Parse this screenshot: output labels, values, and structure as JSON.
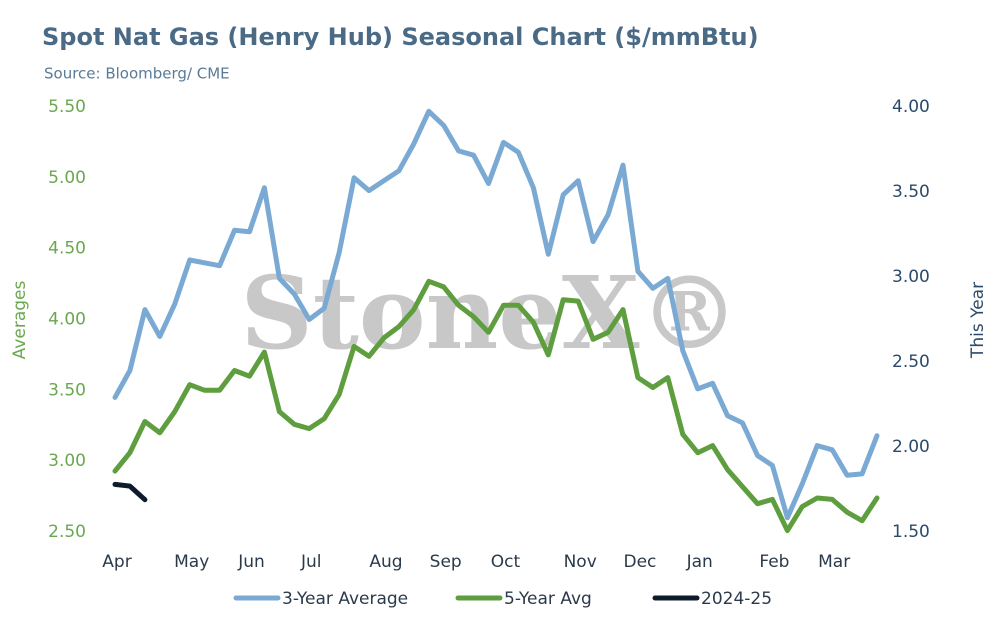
{
  "chart_data": {
    "type": "line",
    "title": "Spot Nat Gas (Henry Hub) Seasonal Chart ($/mmBtu)",
    "subtitle": "Source: Bloomberg/ CME",
    "watermark": "StoneX®",
    "ylabel": "Averages",
    "y2label": "This Year",
    "categories": [
      "Apr",
      null,
      null,
      null,
      null,
      "May",
      null,
      null,
      null,
      "Jun",
      null,
      null,
      null,
      "Jul",
      null,
      null,
      null,
      null,
      "Aug",
      null,
      null,
      null,
      "Sep",
      null,
      null,
      null,
      "Oct",
      null,
      null,
      null,
      null,
      "Nov",
      null,
      null,
      null,
      "Dec",
      null,
      null,
      null,
      "Jan",
      null,
      null,
      null,
      null,
      "Feb",
      null,
      null,
      null,
      "Mar",
      null,
      null,
      null
    ],
    "ylim": [
      2.5,
      5.5
    ],
    "yticks": [
      {
        "value": 2.5,
        "label": "2.50"
      },
      {
        "value": 3,
        "label": "3.00"
      },
      {
        "value": 3.5,
        "label": "3.50"
      },
      {
        "value": 4,
        "label": "4.00"
      },
      {
        "value": 4.5,
        "label": "4.50"
      },
      {
        "value": 5,
        "label": "5.00"
      },
      {
        "value": 5.5,
        "label": "5.50"
      }
    ],
    "y2lim": [
      1.5,
      4.0
    ],
    "y2ticks": [
      {
        "value": 1.5,
        "label": "1.50"
      },
      {
        "value": 2,
        "label": "2.00"
      },
      {
        "value": 2.5,
        "label": "2.50"
      },
      {
        "value": 3,
        "label": "3.00"
      },
      {
        "value": 3.5,
        "label": "3.50"
      },
      {
        "value": 4,
        "label": "4.00"
      }
    ],
    "grid": false,
    "legend": "bottom",
    "series": [
      {
        "name": "3-Year Average",
        "color": "#7aaad4",
        "values": [
          3.45,
          3.64,
          4.07,
          3.88,
          4.11,
          4.42,
          4.4,
          4.38,
          4.63,
          4.62,
          4.93,
          4.29,
          4.18,
          4.0,
          4.08,
          4.47,
          5.0,
          4.91,
          4.98,
          5.05,
          5.24,
          5.47,
          5.37,
          5.19,
          5.16,
          4.96,
          5.25,
          5.18,
          4.93,
          4.46,
          4.88,
          4.98,
          4.55,
          4.74,
          5.09,
          4.34,
          4.22,
          4.29,
          3.78,
          3.51,
          3.55,
          3.32,
          3.27,
          3.04,
          2.97,
          2.6,
          2.84,
          3.11,
          3.08,
          2.9,
          2.91,
          3.18
        ]
      },
      {
        "name": "5-Year Avg",
        "color": "#5e9e3f",
        "values": [
          2.93,
          3.06,
          3.28,
          3.2,
          3.35,
          3.54,
          3.5,
          3.5,
          3.64,
          3.6,
          3.77,
          3.35,
          3.26,
          3.23,
          3.3,
          3.47,
          3.81,
          3.74,
          3.87,
          3.95,
          4.07,
          4.27,
          4.23,
          4.1,
          4.02,
          3.91,
          4.1,
          4.1,
          3.98,
          3.75,
          4.14,
          4.13,
          3.86,
          3.91,
          4.07,
          3.59,
          3.52,
          3.59,
          3.19,
          3.06,
          3.11,
          2.94,
          2.82,
          2.7,
          2.73,
          2.51,
          2.68,
          2.74,
          2.73,
          2.64,
          2.58,
          2.74
        ]
      },
      {
        "name": "2024-25",
        "color": "#0d1b2a",
        "axis": "y2",
        "values": [
          1.78,
          1.77,
          1.69,
          null,
          null,
          null,
          null,
          null,
          null,
          null,
          null,
          null,
          null,
          null,
          null,
          null,
          null,
          null,
          null,
          null,
          null,
          null,
          null,
          null,
          null,
          null,
          null,
          null,
          null,
          null,
          null,
          null,
          null,
          null,
          null,
          null,
          null,
          null,
          null,
          null,
          null,
          null,
          null,
          null,
          null,
          null,
          null,
          null,
          null,
          null,
          null,
          null
        ]
      }
    ]
  }
}
